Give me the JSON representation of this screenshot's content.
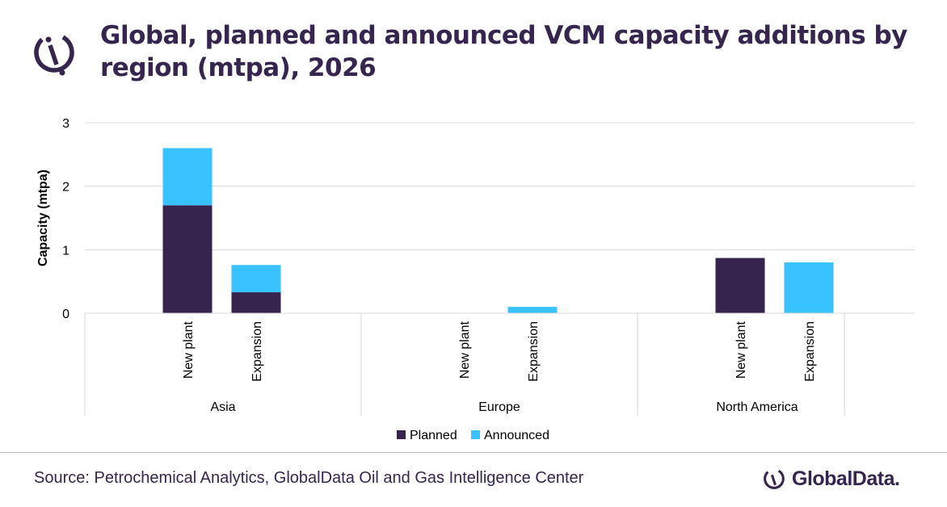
{
  "title": "Global, planned and announced VCM capacity additions by region (mtpa), 2026",
  "source": "Source: Petrochemical Analytics, GlobalData Oil and Gas Intelligence Center",
  "brand": "GlobalData.",
  "chart_data": {
    "type": "bar",
    "stacked": true,
    "ylabel": "Capacity (mtpa)",
    "ylim": [
      0,
      3
    ],
    "yticks": [
      "0",
      "1",
      "2",
      "3"
    ],
    "grid": true,
    "legend_position": "bottom",
    "groups": [
      {
        "region": "Asia",
        "categories": [
          "New plant",
          "Expansion"
        ]
      },
      {
        "region": "Europe",
        "categories": [
          "New plant",
          "Expansion"
        ]
      },
      {
        "region": "North America",
        "categories": [
          "New plant",
          "Expansion"
        ]
      }
    ],
    "series": [
      {
        "name": "Planned",
        "color": "#36244f",
        "values": [
          1.7,
          0.33,
          0,
          0,
          0.87,
          0
        ]
      },
      {
        "name": "Announced",
        "color": "#38c2ff",
        "values": [
          0.9,
          0.43,
          0,
          0.1,
          0,
          0.8
        ]
      }
    ]
  }
}
